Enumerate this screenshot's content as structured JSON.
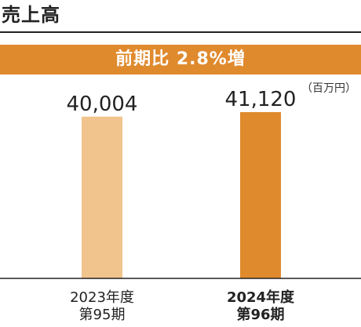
{
  "title": "売上高",
  "banner": "前期比 2.8%増",
  "unit": "（百万円）",
  "chart_data": {
    "type": "bar",
    "categories": [
      {
        "year": "2023年度",
        "period": "第95期"
      },
      {
        "year": "2024年度",
        "period": "第96期"
      }
    ],
    "values": [
      40004,
      41120
    ],
    "value_labels": [
      "40,004",
      "41,120"
    ],
    "colors": [
      "#f0c48c",
      "#e08a2e"
    ],
    "ylim": [
      0,
      41120
    ],
    "grid": false,
    "legend": "none"
  }
}
